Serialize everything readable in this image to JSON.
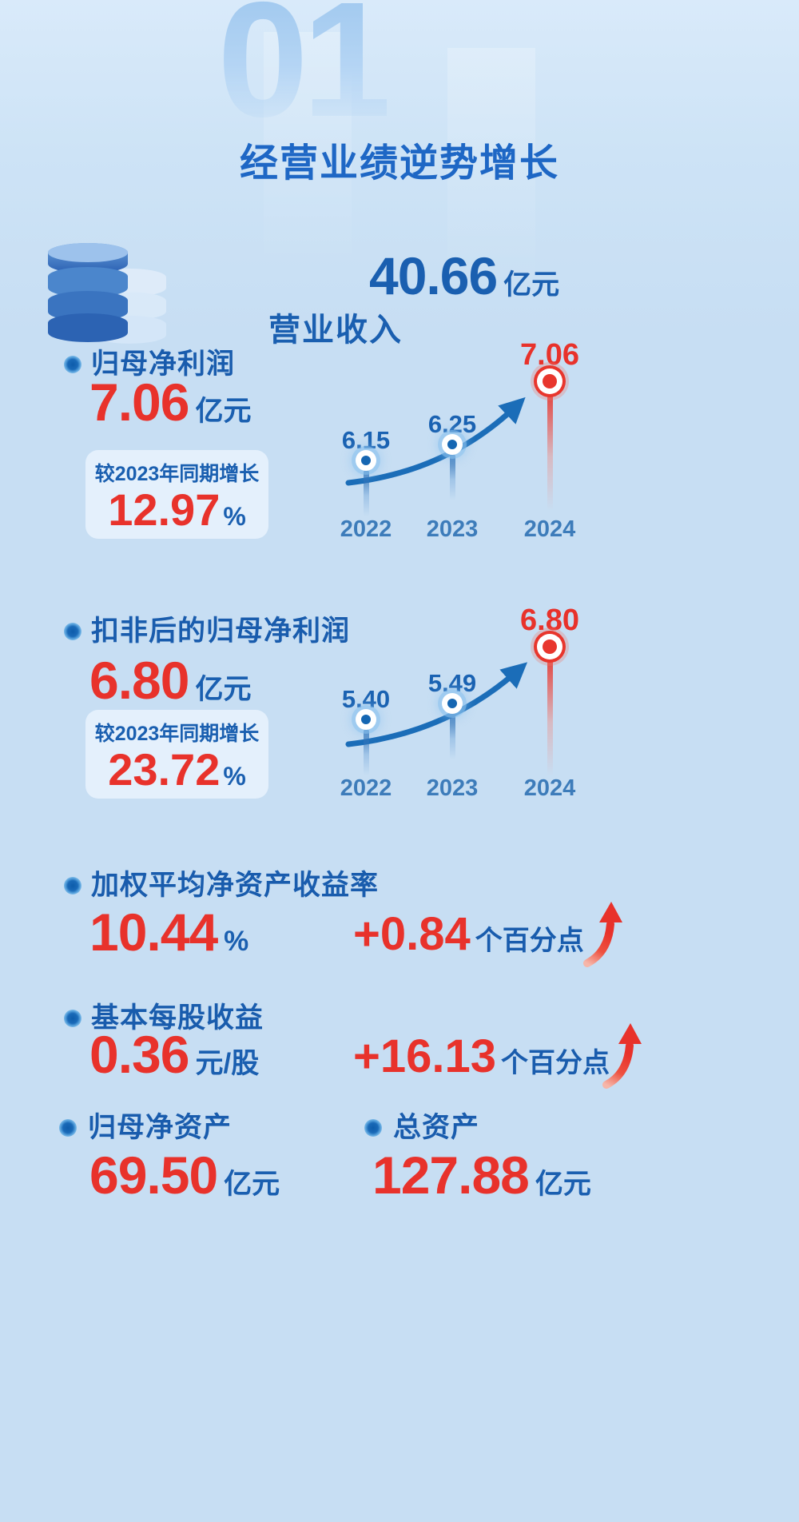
{
  "header": {
    "watermark": "01",
    "title": "经营业绩逆势增长"
  },
  "revenue": {
    "label": "营业收入",
    "value": "40.66",
    "unit": "亿元"
  },
  "sections": {
    "net_profit": {
      "label": "归母净利润",
      "value": "7.06",
      "unit": "亿元",
      "growth_caption": "较2023年同期增长",
      "growth_value": "12.97",
      "growth_unit": "%"
    },
    "deducted_net_profit": {
      "label": "扣非后的归母净利润",
      "value": "6.80",
      "unit": "亿元",
      "growth_caption": "较2023年同期增长",
      "growth_value": "23.72",
      "growth_unit": "%"
    },
    "roe": {
      "label": "加权平均净资产收益率",
      "value": "10.44",
      "unit": "%",
      "delta_value": "+0.84",
      "delta_unit": "个百分点"
    },
    "eps": {
      "label": "基本每股收益",
      "value": "0.36",
      "unit": "元/股",
      "delta_value": "+16.13",
      "delta_unit": "个百分点"
    },
    "net_assets": {
      "label": "归母净资产",
      "value": "69.50",
      "unit": "亿元"
    },
    "total_assets": {
      "label": "总资产",
      "value": "127.88",
      "unit": "亿元"
    }
  },
  "chart_data": [
    {
      "type": "line",
      "title": "归母净利润",
      "unit": "亿元",
      "categories": [
        "2022",
        "2023",
        "2024"
      ],
      "values": [
        6.15,
        6.25,
        7.06
      ],
      "highlight_category": "2024",
      "series_color": "#1b6db8",
      "highlight_color": "#e8322b",
      "grid": false,
      "legend": "none"
    },
    {
      "type": "line",
      "title": "扣非后的归母净利润",
      "unit": "亿元",
      "categories": [
        "2022",
        "2023",
        "2024"
      ],
      "values": [
        5.4,
        5.49,
        6.8
      ],
      "highlight_category": "2024",
      "series_color": "#1b6db8",
      "highlight_color": "#e8322b",
      "grid": false,
      "legend": "none"
    }
  ],
  "theme": {
    "background": "#c7def3",
    "blue": "#1a5fb0",
    "title_blue": "#1e67c5",
    "red": "#e8322b",
    "box_bg": "#e4f0fc",
    "year_label": "#3d7cba"
  }
}
